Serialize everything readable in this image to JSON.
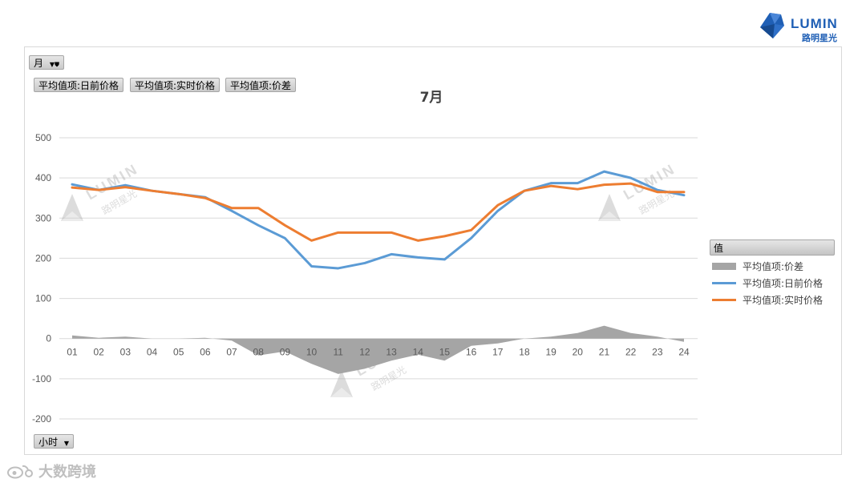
{
  "logo": {
    "icon": "lumin-crystal-icon",
    "name": "LUMIN",
    "sub": "路明星光"
  },
  "filters": {
    "month": {
      "label": "月",
      "icon": "filter-icon"
    },
    "hour": {
      "label": "小时",
      "icon": "dropdown-arrow-icon"
    },
    "values": [
      "平均值项:日前价格",
      "平均值项:实时价格",
      "平均值项:价差"
    ]
  },
  "watermark": {
    "name": "LUMIN",
    "sub": "路明星光"
  },
  "legend": {
    "title": "值",
    "items": [
      {
        "label": "平均值项:价差",
        "color": "#a5a5a5",
        "kind": "area"
      },
      {
        "label": "平均值项:日前价格",
        "color": "#5b9bd5",
        "kind": "line"
      },
      {
        "label": "平均值项:实时价格",
        "color": "#ed7d31",
        "kind": "line"
      }
    ]
  },
  "footer": {
    "icon": "weibo-icon",
    "text": "大数跨境"
  },
  "chart_data": {
    "type": "line",
    "title": "7月",
    "categories": [
      "01",
      "02",
      "03",
      "04",
      "05",
      "06",
      "07",
      "08",
      "09",
      "10",
      "11",
      "12",
      "13",
      "14",
      "15",
      "16",
      "17",
      "18",
      "19",
      "20",
      "21",
      "22",
      "23",
      "24"
    ],
    "ylim": [
      -200,
      500
    ],
    "yticks": [
      500,
      400,
      300,
      200,
      100,
      0,
      -100,
      -200
    ],
    "grid": true,
    "legend_position": "right",
    "series": [
      {
        "name": "平均值项:价差",
        "kind": "area",
        "color": "#a5a5a5",
        "values": [
          8,
          2,
          5,
          0,
          0,
          2,
          -5,
          -42,
          -32,
          -63,
          -88,
          -75,
          -55,
          -40,
          -55,
          -18,
          -12,
          0,
          5,
          14,
          32,
          14,
          5,
          -8
        ]
      },
      {
        "name": "平均值项:日前价格",
        "kind": "line",
        "color": "#5b9bd5",
        "values": [
          384,
          370,
          382,
          368,
          360,
          352,
          318,
          282,
          250,
          180,
          175,
          188,
          210,
          202,
          197,
          250,
          318,
          368,
          387,
          387,
          416,
          400,
          370,
          357
        ]
      },
      {
        "name": "平均值项:实时价格",
        "kind": "line",
        "color": "#ed7d31",
        "values": [
          376,
          370,
          377,
          368,
          360,
          350,
          325,
          325,
          282,
          244,
          264,
          264,
          264,
          244,
          255,
          270,
          332,
          368,
          380,
          372,
          383,
          386,
          365,
          365
        ]
      }
    ]
  }
}
